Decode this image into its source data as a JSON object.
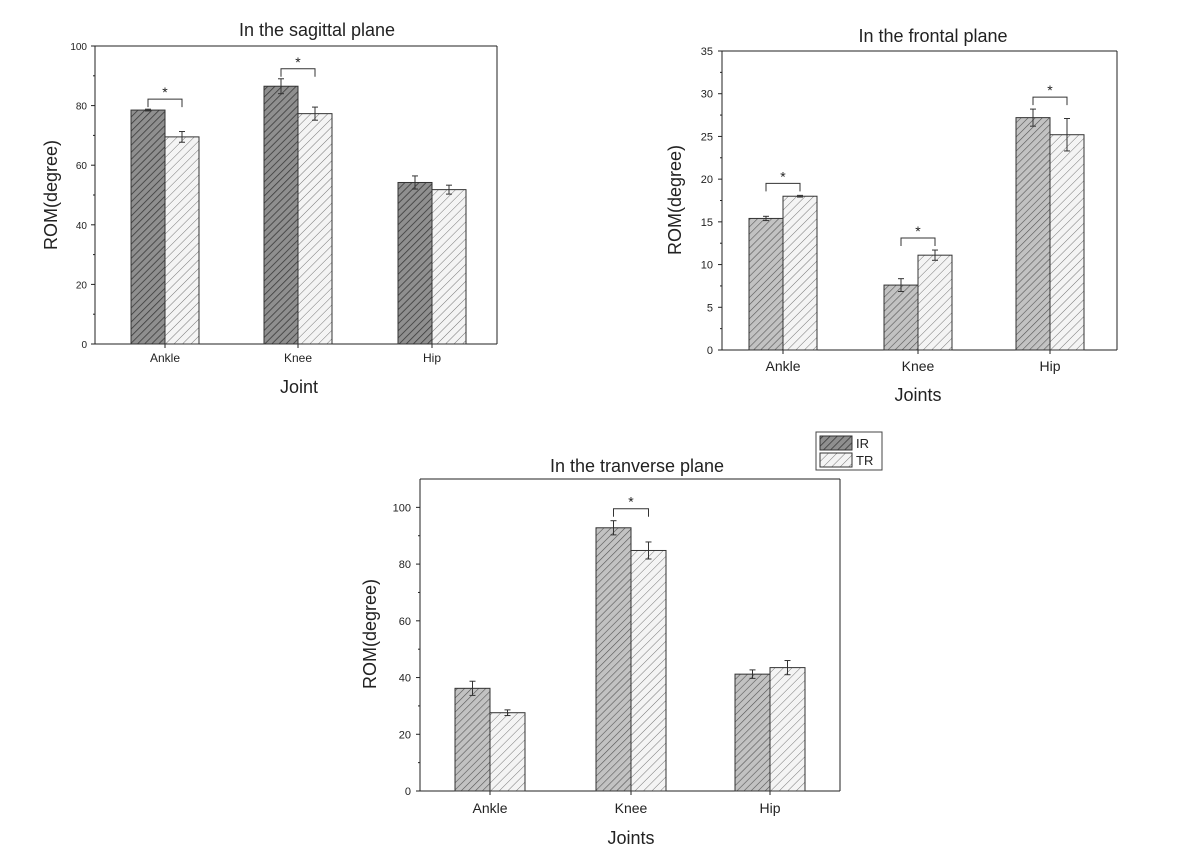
{
  "chart_data": [
    {
      "type": "bar",
      "title": "In the sagittal plane",
      "xlabel": "Joint",
      "ylabel": "ROM(degree)",
      "categories": [
        "Ankle",
        "Knee",
        "Hip"
      ],
      "ylim": [
        0,
        100
      ],
      "yticks": [
        0,
        20,
        40,
        60,
        80,
        100
      ],
      "series": [
        {
          "name": "IR",
          "values": [
            78.5,
            86.5,
            54.2
          ],
          "errors": [
            0.3,
            2.5,
            2.2
          ]
        },
        {
          "name": "TR",
          "values": [
            69.5,
            77.3,
            51.8
          ],
          "errors": [
            1.8,
            2.2,
            1.5
          ]
        }
      ],
      "significant": [
        true,
        true,
        false
      ],
      "sig_symbol": "*"
    },
    {
      "type": "bar",
      "title": "In the frontal plane",
      "xlabel": "Joints",
      "ylabel": "ROM(degree)",
      "categories": [
        "Ankle",
        "Knee",
        "Hip"
      ],
      "ylim": [
        0,
        35
      ],
      "yticks": [
        0,
        5,
        10,
        15,
        20,
        25,
        30,
        35
      ],
      "series": [
        {
          "name": "IR",
          "values": [
            15.4,
            7.6,
            27.2
          ],
          "errors": [
            0.25,
            0.75,
            1.0
          ]
        },
        {
          "name": "TR",
          "values": [
            18.0,
            11.1,
            25.2
          ],
          "errors": [
            0.1,
            0.6,
            1.9
          ]
        }
      ],
      "significant": [
        true,
        true,
        true
      ],
      "sig_symbol": "*"
    },
    {
      "type": "bar",
      "title": "In the tranverse plane",
      "xlabel": "Joints",
      "ylabel": "ROM(degree)",
      "categories": [
        "Ankle",
        "Knee",
        "Hip"
      ],
      "ylim": [
        0,
        110
      ],
      "yticks": [
        0,
        20,
        40,
        60,
        80,
        100
      ],
      "series": [
        {
          "name": "IR",
          "values": [
            36.2,
            92.8,
            41.2
          ],
          "errors": [
            2.5,
            2.5,
            1.5
          ]
        },
        {
          "name": "TR",
          "values": [
            27.6,
            84.8,
            43.5
          ],
          "errors": [
            1.0,
            3.0,
            2.5
          ]
        }
      ],
      "significant": [
        false,
        true,
        false
      ],
      "sig_symbol": "*"
    }
  ],
  "legend": {
    "items": [
      {
        "label": "IR",
        "color": "#8a8a8a"
      },
      {
        "label": "TR",
        "color": "#f2f2f2"
      }
    ],
    "placement": "top-right of bottom chart"
  },
  "colors": {
    "IR_fill": "#8f8f8f",
    "TR_fill": "#f4f4f4",
    "frontal_IR_fill": "#bdbdbd",
    "axis": "#222222",
    "hatch_dark": "#3a3a3a",
    "hatch_light": "#777777"
  }
}
